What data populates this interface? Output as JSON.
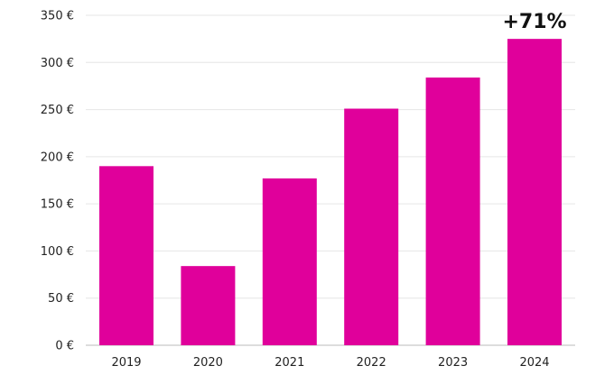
{
  "chart_data": {
    "type": "bar",
    "title": "",
    "xlabel": "",
    "ylabel": "",
    "categories": [
      "2019",
      "2020",
      "2021",
      "2022",
      "2023",
      "2024"
    ],
    "values": [
      190,
      84,
      177,
      251,
      284,
      325
    ],
    "ylim": [
      0,
      350
    ],
    "yticks": [
      0,
      50,
      100,
      150,
      200,
      250,
      300,
      350
    ],
    "ytick_labels": [
      "0 €",
      "50 €",
      "100 €",
      "150 €",
      "200 €",
      "250 €",
      "300 €",
      "350 €"
    ],
    "grid": true,
    "bar_color": "#e0009b",
    "annotation": {
      "text": "+71%",
      "category": "2024"
    }
  }
}
